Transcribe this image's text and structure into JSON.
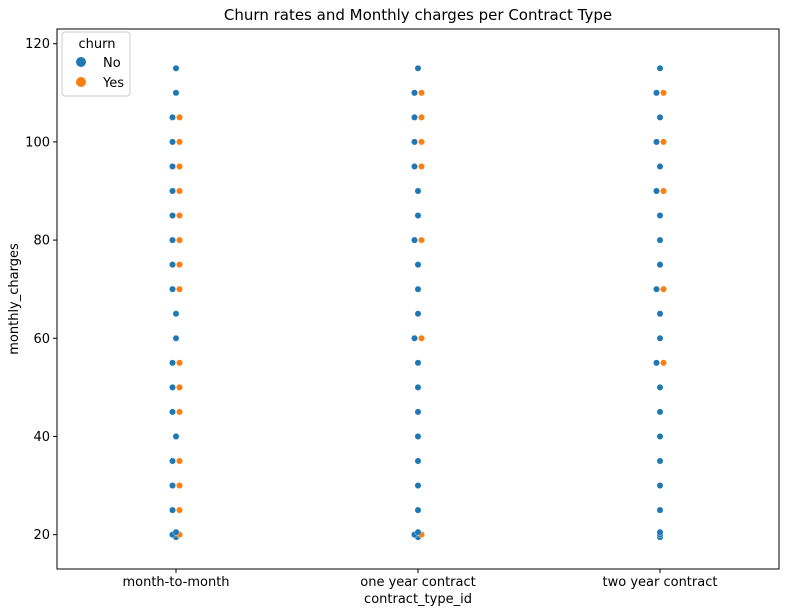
{
  "chart_data": {
    "type": "scatter",
    "subtype": "swarm",
    "title": "Churn rates and Monthly charges per Contract Type",
    "xlabel": "contract_type_id",
    "ylabel": "monthly_charges",
    "categories": [
      "month-to-month",
      "one year contract",
      "two year contract"
    ],
    "ylim": [
      13,
      123
    ],
    "yticks": [
      20,
      40,
      60,
      80,
      100,
      120
    ],
    "grid": false,
    "legend": {
      "title": "churn",
      "placement": "top-left",
      "entries": [
        {
          "label": "No",
          "color": "#1f77b4"
        },
        {
          "label": "Yes",
          "color": "#ff7f0e"
        }
      ]
    },
    "series": [
      {
        "name": "No",
        "color": "#1f77b4",
        "points": [
          {
            "x": "month-to-month",
            "y": 19.5
          },
          {
            "x": "month-to-month",
            "y": 20.0
          },
          {
            "x": "month-to-month",
            "y": 20.5
          },
          {
            "x": "month-to-month",
            "y": 25.0
          },
          {
            "x": "month-to-month",
            "y": 30.0
          },
          {
            "x": "month-to-month",
            "y": 35.0
          },
          {
            "x": "month-to-month",
            "y": 40.0
          },
          {
            "x": "month-to-month",
            "y": 45.0
          },
          {
            "x": "month-to-month",
            "y": 50.0
          },
          {
            "x": "month-to-month",
            "y": 55.0
          },
          {
            "x": "month-to-month",
            "y": 60.0
          },
          {
            "x": "month-to-month",
            "y": 65.0
          },
          {
            "x": "month-to-month",
            "y": 70.0
          },
          {
            "x": "month-to-month",
            "y": 75.0
          },
          {
            "x": "month-to-month",
            "y": 80.0
          },
          {
            "x": "month-to-month",
            "y": 85.0
          },
          {
            "x": "month-to-month",
            "y": 90.0
          },
          {
            "x": "month-to-month",
            "y": 95.0
          },
          {
            "x": "month-to-month",
            "y": 100.0
          },
          {
            "x": "month-to-month",
            "y": 105.0
          },
          {
            "x": "month-to-month",
            "y": 110.0
          },
          {
            "x": "month-to-month",
            "y": 115.0
          },
          {
            "x": "one year contract",
            "y": 19.5
          },
          {
            "x": "one year contract",
            "y": 20.0
          },
          {
            "x": "one year contract",
            "y": 20.5
          },
          {
            "x": "one year contract",
            "y": 25.0
          },
          {
            "x": "one year contract",
            "y": 30.0
          },
          {
            "x": "one year contract",
            "y": 35.0
          },
          {
            "x": "one year contract",
            "y": 40.0
          },
          {
            "x": "one year contract",
            "y": 45.0
          },
          {
            "x": "one year contract",
            "y": 50.0
          },
          {
            "x": "one year contract",
            "y": 55.0
          },
          {
            "x": "one year contract",
            "y": 60.0
          },
          {
            "x": "one year contract",
            "y": 65.0
          },
          {
            "x": "one year contract",
            "y": 70.0
          },
          {
            "x": "one year contract",
            "y": 75.0
          },
          {
            "x": "one year contract",
            "y": 80.0
          },
          {
            "x": "one year contract",
            "y": 85.0
          },
          {
            "x": "one year contract",
            "y": 90.0
          },
          {
            "x": "one year contract",
            "y": 95.0
          },
          {
            "x": "one year contract",
            "y": 100.0
          },
          {
            "x": "one year contract",
            "y": 105.0
          },
          {
            "x": "one year contract",
            "y": 110.0
          },
          {
            "x": "one year contract",
            "y": 115.0
          },
          {
            "x": "two year contract",
            "y": 19.5
          },
          {
            "x": "two year contract",
            "y": 20.0
          },
          {
            "x": "two year contract",
            "y": 20.5
          },
          {
            "x": "two year contract",
            "y": 25.0
          },
          {
            "x": "two year contract",
            "y": 30.0
          },
          {
            "x": "two year contract",
            "y": 35.0
          },
          {
            "x": "two year contract",
            "y": 40.0
          },
          {
            "x": "two year contract",
            "y": 45.0
          },
          {
            "x": "two year contract",
            "y": 50.0
          },
          {
            "x": "two year contract",
            "y": 55.0
          },
          {
            "x": "two year contract",
            "y": 60.0
          },
          {
            "x": "two year contract",
            "y": 65.0
          },
          {
            "x": "two year contract",
            "y": 70.0
          },
          {
            "x": "two year contract",
            "y": 75.0
          },
          {
            "x": "two year contract",
            "y": 80.0
          },
          {
            "x": "two year contract",
            "y": 85.0
          },
          {
            "x": "two year contract",
            "y": 90.0
          },
          {
            "x": "two year contract",
            "y": 95.0
          },
          {
            "x": "two year contract",
            "y": 100.0
          },
          {
            "x": "two year contract",
            "y": 105.0
          },
          {
            "x": "two year contract",
            "y": 110.0
          },
          {
            "x": "two year contract",
            "y": 115.0
          }
        ]
      },
      {
        "name": "Yes",
        "color": "#ff7f0e",
        "points": [
          {
            "x": "month-to-month",
            "y": 20.0
          },
          {
            "x": "month-to-month",
            "y": 25.0
          },
          {
            "x": "month-to-month",
            "y": 30.0
          },
          {
            "x": "month-to-month",
            "y": 35.0
          },
          {
            "x": "month-to-month",
            "y": 45.0
          },
          {
            "x": "month-to-month",
            "y": 50.0
          },
          {
            "x": "month-to-month",
            "y": 55.0
          },
          {
            "x": "month-to-month",
            "y": 70.0
          },
          {
            "x": "month-to-month",
            "y": 75.0
          },
          {
            "x": "month-to-month",
            "y": 80.0
          },
          {
            "x": "month-to-month",
            "y": 85.0
          },
          {
            "x": "month-to-month",
            "y": 90.0
          },
          {
            "x": "month-to-month",
            "y": 95.0
          },
          {
            "x": "month-to-month",
            "y": 100.0
          },
          {
            "x": "month-to-month",
            "y": 105.0
          },
          {
            "x": "one year contract",
            "y": 20.0
          },
          {
            "x": "one year contract",
            "y": 60.0
          },
          {
            "x": "one year contract",
            "y": 80.0
          },
          {
            "x": "one year contract",
            "y": 95.0
          },
          {
            "x": "one year contract",
            "y": 100.0
          },
          {
            "x": "one year contract",
            "y": 105.0
          },
          {
            "x": "one year contract",
            "y": 110.0
          },
          {
            "x": "two year contract",
            "y": 55.0
          },
          {
            "x": "two year contract",
            "y": 70.0
          },
          {
            "x": "two year contract",
            "y": 90.0
          },
          {
            "x": "two year contract",
            "y": 100.0
          },
          {
            "x": "two year contract",
            "y": 110.0
          }
        ]
      }
    ]
  }
}
